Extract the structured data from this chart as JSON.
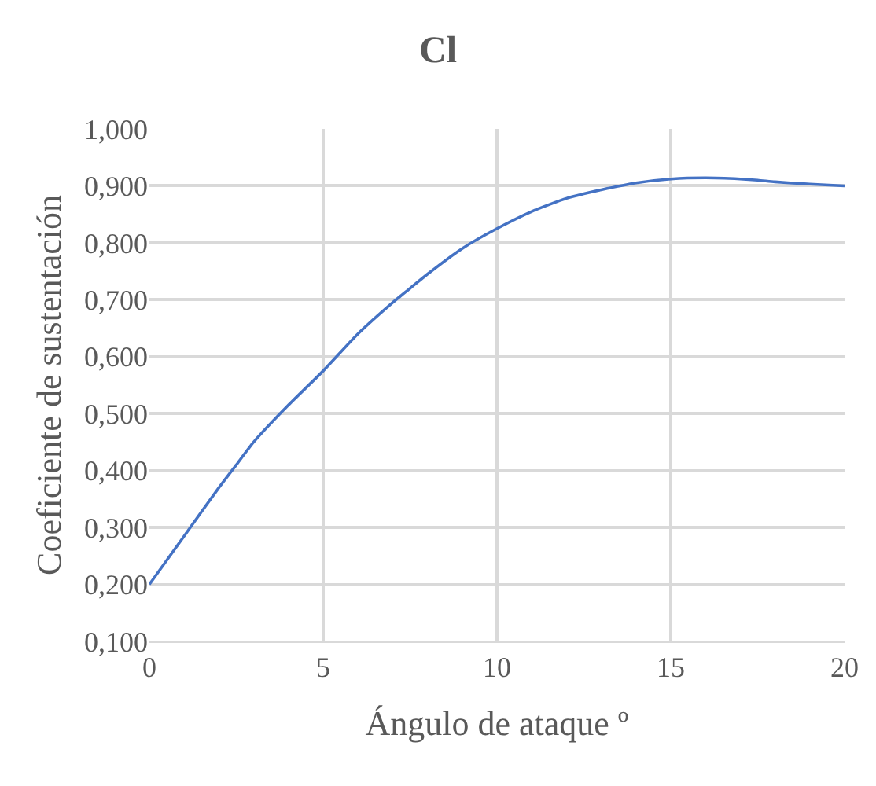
{
  "chart_data": {
    "type": "line",
    "title": "Cl",
    "xlabel": "Ángulo de ataque º",
    "ylabel": "Coeficiente de sustentación",
    "x": [
      0,
      1,
      2,
      2.5,
      3,
      4,
      5,
      6,
      7,
      7.5,
      8,
      9,
      10,
      11,
      12,
      12.5,
      13,
      14,
      15,
      16,
      17,
      17.5,
      18,
      19,
      20
    ],
    "series": [
      {
        "color": "#4472c4",
        "values": [
          0.2,
          0.285,
          0.37,
          0.41,
          0.45,
          0.515,
          0.575,
          0.64,
          0.695,
          0.72,
          0.745,
          0.79,
          0.825,
          0.855,
          0.878,
          0.886,
          0.893,
          0.905,
          0.912,
          0.914,
          0.912,
          0.91,
          0.907,
          0.903,
          0.9
        ]
      }
    ],
    "xlim": [
      0,
      20
    ],
    "xticks": [
      0,
      5,
      10,
      15,
      20
    ],
    "ylim": [
      0.1,
      1.0
    ],
    "yticks": [
      {
        "value": 0.1,
        "label": "0,100"
      },
      {
        "value": 0.2,
        "label": "0,200"
      },
      {
        "value": 0.3,
        "label": "0,300"
      },
      {
        "value": 0.4,
        "label": "0,400"
      },
      {
        "value": 0.5,
        "label": "0,500"
      },
      {
        "value": 0.6,
        "label": "0,600"
      },
      {
        "value": 0.7,
        "label": "0,700"
      },
      {
        "value": 0.8,
        "label": "0,800"
      },
      {
        "value": 0.9,
        "label": "0,900"
      },
      {
        "value": 1.0,
        "label": "1,000"
      }
    ],
    "grid": true,
    "marker": "none",
    "line_style": "solid",
    "legend": false
  }
}
